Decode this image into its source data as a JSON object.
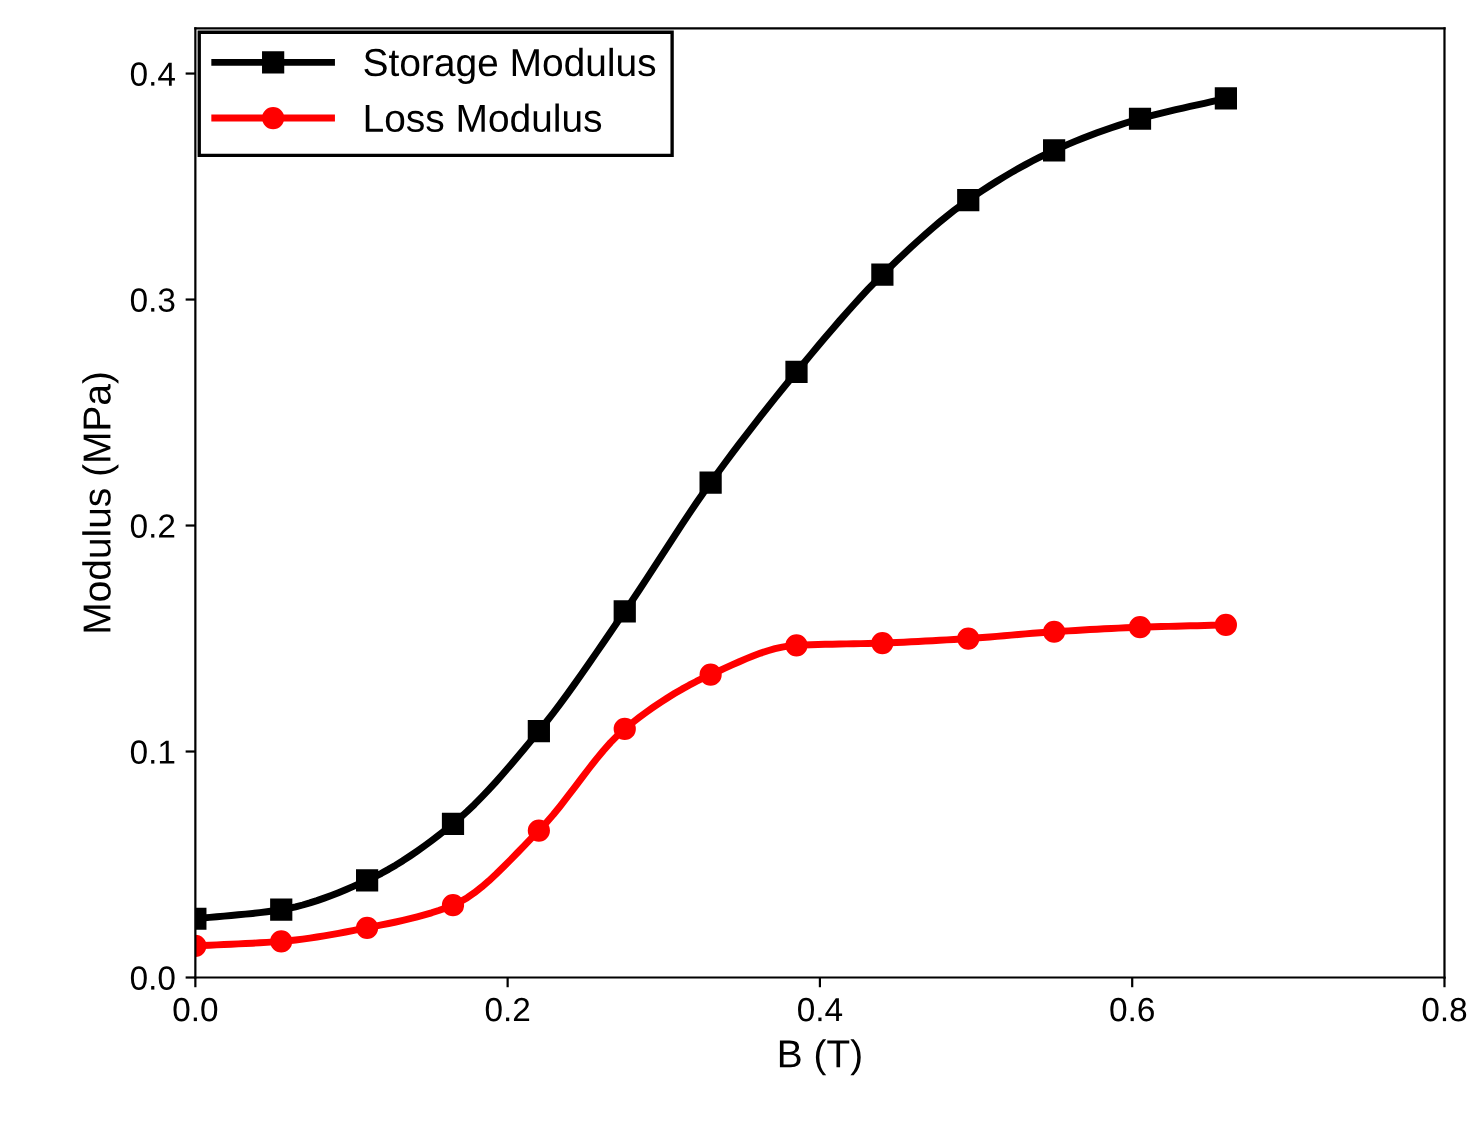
{
  "chart_data": {
    "type": "line",
    "xlabel": "B (T)",
    "ylabel": "Modulus (MPa)",
    "x": [
      0,
      0.055,
      0.11,
      0.165,
      0.22,
      0.275,
      0.33,
      0.385,
      0.44,
      0.495,
      0.55,
      0.605,
      0.66
    ],
    "series": [
      {
        "name": "Storage Modulus",
        "color": "#000000",
        "marker": "square",
        "values": [
          0.026,
          0.03,
          0.043,
          0.068,
          0.109,
          0.162,
          0.219,
          0.268,
          0.311,
          0.344,
          0.366,
          0.38,
          0.389
        ]
      },
      {
        "name": "Loss Modulus",
        "color": "#ff0000",
        "marker": "circle",
        "values": [
          0.014,
          0.016,
          0.022,
          0.032,
          0.065,
          0.11,
          0.134,
          0.147,
          0.148,
          0.15,
          0.153,
          0.155,
          0.156
        ]
      }
    ],
    "xlim": [
      0,
      0.8
    ],
    "xticks": [
      {
        "value": 0,
        "label": "0.0"
      },
      0.2,
      0.4,
      0.6,
      0.8
    ],
    "ylim": [
      0,
      0.42
    ],
    "yticks": [
      {
        "value": 0,
        "label": "0.0"
      },
      0.1,
      0.2,
      0.3,
      0.4
    ],
    "grid": false,
    "legend": "top left",
    "line_style": "solid"
  }
}
